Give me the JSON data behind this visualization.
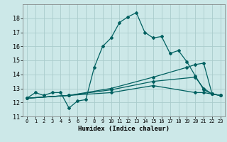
{
  "xlabel": "Humidex (Indice chaleur)",
  "bg_color": "#cce8e8",
  "grid_color": "#aacccc",
  "line_color": "#006060",
  "xlim": [
    -0.5,
    23.5
  ],
  "ylim": [
    11,
    19
  ],
  "yticks": [
    11,
    12,
    13,
    14,
    15,
    16,
    17,
    18
  ],
  "xticks": [
    0,
    1,
    2,
    3,
    4,
    5,
    6,
    7,
    8,
    9,
    10,
    11,
    12,
    13,
    14,
    15,
    16,
    17,
    18,
    19,
    20,
    21,
    22,
    23
  ],
  "line1_x": [
    0,
    1,
    2,
    3,
    4,
    5,
    6,
    7,
    8,
    9,
    10,
    11,
    12,
    13,
    14,
    15,
    16,
    17,
    18,
    19,
    20,
    21,
    22,
    23
  ],
  "line1_y": [
    12.3,
    12.7,
    12.5,
    12.7,
    12.7,
    11.6,
    12.1,
    12.2,
    14.5,
    16.0,
    16.6,
    17.7,
    18.1,
    18.4,
    17.0,
    16.6,
    16.7,
    15.5,
    15.7,
    14.9,
    13.9,
    12.9,
    12.6,
    12.5
  ],
  "line2_x": [
    0,
    5,
    10,
    15,
    19,
    20,
    21,
    22,
    23
  ],
  "line2_y": [
    12.3,
    12.5,
    13.0,
    13.8,
    14.5,
    14.7,
    14.8,
    12.6,
    12.5
  ],
  "line3_x": [
    0,
    5,
    10,
    15,
    20,
    21,
    22,
    23
  ],
  "line3_y": [
    12.3,
    12.5,
    12.9,
    13.5,
    13.8,
    13.0,
    12.6,
    12.5
  ],
  "line4_x": [
    0,
    5,
    10,
    15,
    20,
    21,
    22,
    23
  ],
  "line4_y": [
    12.3,
    12.5,
    12.7,
    13.2,
    12.7,
    12.7,
    12.6,
    12.5
  ]
}
